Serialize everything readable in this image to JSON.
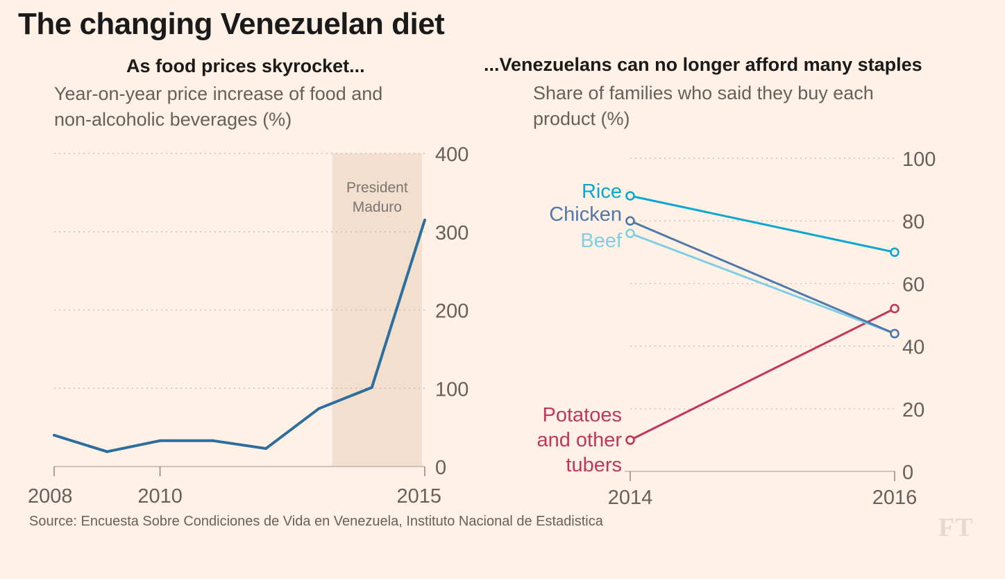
{
  "title": "The changing Venezuelan diet",
  "left_panel": {
    "heading": "As food prices skyrocket...",
    "description": [
      "Year-on-year price increase of food and",
      "non-alcoholic beverages (%)"
    ]
  },
  "right_panel": {
    "heading": "...Venezuelans can no longer afford many staples",
    "description": [
      "Share of families who said they buy each",
      "product (%)"
    ]
  },
  "source": "Source: Encuesta Sobre Condiciones de Vida en Venezuela, Instituto Nacional de Estadistica",
  "logo": "FT",
  "chart_data": [
    {
      "type": "line",
      "title": "As food prices skyrocket...",
      "subtitle": "Year-on-year price increase of food and non-alcoholic beverages (%)",
      "x": [
        2008,
        2009,
        2010,
        2011,
        2012,
        2013,
        2014,
        2015
      ],
      "values": [
        40,
        19,
        33,
        33,
        23,
        74,
        101,
        315
      ],
      "ylim": [
        0,
        400
      ],
      "yticks": [
        0,
        100,
        200,
        300,
        400
      ],
      "xticks": [
        "2008",
        "2010",
        "2015"
      ],
      "xlim": [
        2008,
        2015
      ],
      "grid": true,
      "color": "#2e6e9e",
      "annotation": {
        "label": [
          "President",
          "Maduro"
        ],
        "x_start": 2013.25,
        "x_end": 2014.95,
        "color": "#f2dfce"
      }
    },
    {
      "type": "line",
      "title": "...Venezuelans can no longer afford many staples",
      "subtitle": "Share of families who said they buy each product (%)",
      "categories": [
        "2014",
        "2016"
      ],
      "ylim": [
        0,
        100
      ],
      "yticks": [
        0,
        20,
        40,
        60,
        80,
        100
      ],
      "grid": true,
      "series": [
        {
          "name": "Rice",
          "label": [
            "Rice"
          ],
          "values": [
            88,
            70
          ],
          "color": "#0aa6d2"
        },
        {
          "name": "Chicken",
          "label": [
            "Chicken"
          ],
          "values": [
            80,
            44
          ],
          "color": "#4e77ac"
        },
        {
          "name": "Beef",
          "label": [
            "Beef"
          ],
          "values": [
            76,
            44
          ],
          "color": "#7fcee5"
        },
        {
          "name": "Potatoes and other tubers",
          "label": [
            "Potatoes",
            "and other",
            "tubers"
          ],
          "values": [
            10,
            52
          ],
          "color": "#c0365d"
        }
      ]
    }
  ]
}
